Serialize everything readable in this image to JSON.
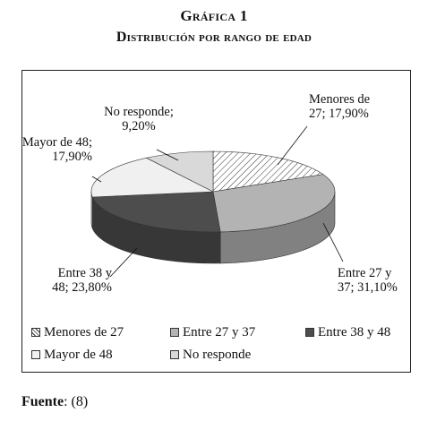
{
  "header": {
    "title": "Gráfica 1",
    "subtitle": "Distribución por rango de edad"
  },
  "chart_data": {
    "type": "pie",
    "three_d": true,
    "unit": "%",
    "slices": [
      {
        "label": "Menores de 27",
        "value": 17.9,
        "data_label_lines": [
          "Menores de",
          "27; 17,90%"
        ],
        "fill": "hatch"
      },
      {
        "label": "Entre 27 y 37",
        "value": 31.1,
        "data_label_lines": [
          "Entre 27 y",
          "37; 31,10%"
        ],
        "fill": "#b3b3b3"
      },
      {
        "label": "Entre 38 y 48",
        "value": 23.8,
        "data_label_lines": [
          "Entre 38 y",
          "48; 23,80%"
        ],
        "fill": "#4d4d4d"
      },
      {
        "label": "Mayor de 48",
        "value": 17.9,
        "data_label_lines": [
          "Mayor de 48;",
          "17,90%"
        ],
        "fill": "#f0f0f0"
      },
      {
        "label": "No responde",
        "value": 9.2,
        "data_label_lines": [
          "No responde;",
          "9,20%"
        ],
        "fill": "#d9d9d9"
      }
    ],
    "legend_placement": "bottom"
  },
  "source": {
    "label": "Fuente",
    "text": ": (8)"
  }
}
